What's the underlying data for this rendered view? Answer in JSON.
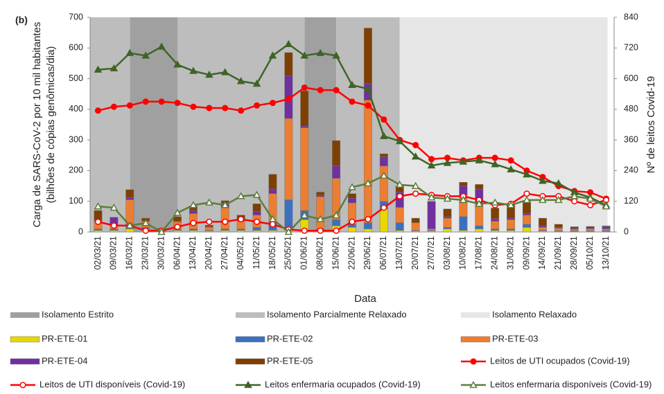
{
  "chart_data": {
    "type": "bar",
    "annotation": "(b)",
    "x_label": "Data",
    "y_label": [
      "Carga de SARS-CoV-2 por 10 mil habitantes",
      "(bilhões de cópias genômicas/dia)"
    ],
    "y2_label": "Nº de leitos Covid-19",
    "categories": [
      "02/03/21",
      "09/03/21",
      "16/03/21",
      "23/03/21",
      "30/03/21",
      "06/04/21",
      "13/04/21",
      "20/04/21",
      "27/04/21",
      "04/05/21",
      "11/05/21",
      "18/05/21",
      "25/05/21",
      "01/06/21",
      "08/06/21",
      "15/06/21",
      "22/06/21",
      "29/06/21",
      "06/07/21",
      "13/07/21",
      "20/07/21",
      "27/07/21",
      "03/08/21",
      "10/08/21",
      "17/08/21",
      "24/08/21",
      "31/08/21",
      "09/09/21",
      "14/09/21",
      "21/09/21",
      "28/09/21",
      "05/10/21",
      "13/10/21"
    ],
    "ylim": [
      0,
      700
    ],
    "yticks": [
      0,
      100,
      200,
      300,
      400,
      500,
      600,
      700
    ],
    "y2lim": [
      0,
      840
    ],
    "y2ticks": [
      0,
      120,
      240,
      360,
      480,
      600,
      720,
      840
    ],
    "grid": false,
    "phases": [
      {
        "name": "Isolamento Estrito",
        "color": "#a0a0a0",
        "spans": [
          [
            "16/03/21",
            "06/04/21"
          ],
          [
            "01/06/21",
            "15/06/21"
          ]
        ]
      },
      {
        "name": "Isolamento Parcialmente Relaxado",
        "color": "#bdbdbd",
        "spans": [
          [
            "02/03/21",
            "16/03/21"
          ],
          [
            "06/04/21",
            "01/06/21"
          ],
          [
            "15/06/21",
            "13/07/21"
          ]
        ]
      },
      {
        "name": "Isolamento Relaxado",
        "color": "#e6e6e6",
        "spans": [
          [
            "13/07/21",
            "13/10/21"
          ]
        ]
      }
    ],
    "series": [
      {
        "name": "PR-ETE-01",
        "type": "bar",
        "color": "#e6d800",
        "values": [
          5,
          5,
          10,
          10,
          2,
          5,
          5,
          3,
          5,
          5,
          5,
          5,
          5,
          40,
          5,
          20,
          15,
          10,
          75,
          5,
          3,
          3,
          10,
          5,
          10,
          5,
          5,
          15,
          3,
          2,
          2,
          2,
          2
        ]
      },
      {
        "name": "PR-ETE-02",
        "type": "bar",
        "color": "#3a70c0",
        "values": [
          5,
          5,
          15,
          5,
          2,
          3,
          5,
          2,
          5,
          5,
          10,
          30,
          100,
          30,
          5,
          20,
          10,
          20,
          25,
          25,
          2,
          2,
          5,
          45,
          10,
          5,
          5,
          10,
          2,
          2,
          2,
          2,
          3
        ]
      },
      {
        "name": "PR-ETE-03",
        "type": "bar",
        "color": "#ed7d31",
        "values": [
          25,
          10,
          80,
          20,
          3,
          25,
          50,
          10,
          70,
          25,
          40,
          90,
          265,
          270,
          105,
          135,
          70,
          400,
          115,
          50,
          25,
          5,
          30,
          70,
          70,
          25,
          30,
          30,
          10,
          8,
          5,
          6,
          5
        ]
      },
      {
        "name": "PR-ETE-04",
        "type": "bar",
        "color": "#7030a0",
        "values": [
          5,
          28,
          8,
          0,
          2,
          2,
          10,
          2,
          15,
          5,
          12,
          15,
          140,
          5,
          5,
          40,
          15,
          55,
          30,
          50,
          0,
          90,
          5,
          30,
          50,
          8,
          5,
          5,
          5,
          3,
          3,
          3,
          8
        ]
      },
      {
        "name": "PR-ETE-05",
        "type": "bar",
        "color": "#7f3f00",
        "values": [
          30,
          0,
          25,
          10,
          3,
          15,
          15,
          5,
          7,
          15,
          25,
          48,
          75,
          115,
          10,
          83,
          15,
          180,
          10,
          20,
          15,
          0,
          25,
          12,
          15,
          35,
          45,
          40,
          25,
          10,
          5,
          5,
          2
        ]
      },
      {
        "name": "Leitos de UTI ocupados (Covid-19)",
        "type": "line",
        "axis": "y2",
        "marker": "filled",
        "color": "#ff0000",
        "values": [
          475,
          490,
          495,
          510,
          510,
          505,
          490,
          485,
          485,
          475,
          495,
          505,
          520,
          565,
          555,
          555,
          510,
          495,
          440,
          360,
          340,
          285,
          290,
          280,
          290,
          290,
          280,
          240,
          215,
          180,
          160,
          155,
          130
        ]
      },
      {
        "name": "Leitos de UTI disponíveis (Covid-19)",
        "type": "line",
        "axis": "y2",
        "marker": "open",
        "color": "#ff0000",
        "values": [
          40,
          25,
          25,
          5,
          5,
          20,
          35,
          40,
          40,
          50,
          40,
          30,
          10,
          5,
          5,
          5,
          40,
          50,
          95,
          140,
          150,
          145,
          140,
          140,
          125,
          105,
          110,
          150,
          140,
          140,
          120,
          105,
          125
        ]
      },
      {
        "name": "Leitos enfermaria ocupados (Covid-19)",
        "type": "line",
        "axis": "y2",
        "marker": "filled",
        "color": "#3f6426",
        "values": [
          635,
          640,
          700,
          690,
          725,
          655,
          630,
          615,
          625,
          590,
          580,
          690,
          735,
          690,
          700,
          690,
          575,
          560,
          375,
          355,
          295,
          260,
          270,
          275,
          280,
          265,
          245,
          225,
          200,
          190,
          155,
          135,
          105
        ]
      },
      {
        "name": "Leitos enfermaria disponíveis (Covid-19)",
        "type": "line",
        "axis": "y2",
        "marker": "open",
        "color": "#5a7d3c",
        "values": [
          100,
          95,
          25,
          35,
          0,
          75,
          105,
          115,
          105,
          140,
          145,
          50,
          0,
          65,
          50,
          65,
          175,
          190,
          220,
          185,
          180,
          135,
          130,
          125,
          110,
          115,
          105,
          125,
          125,
          125,
          140,
          130,
          100
        ]
      }
    ]
  }
}
